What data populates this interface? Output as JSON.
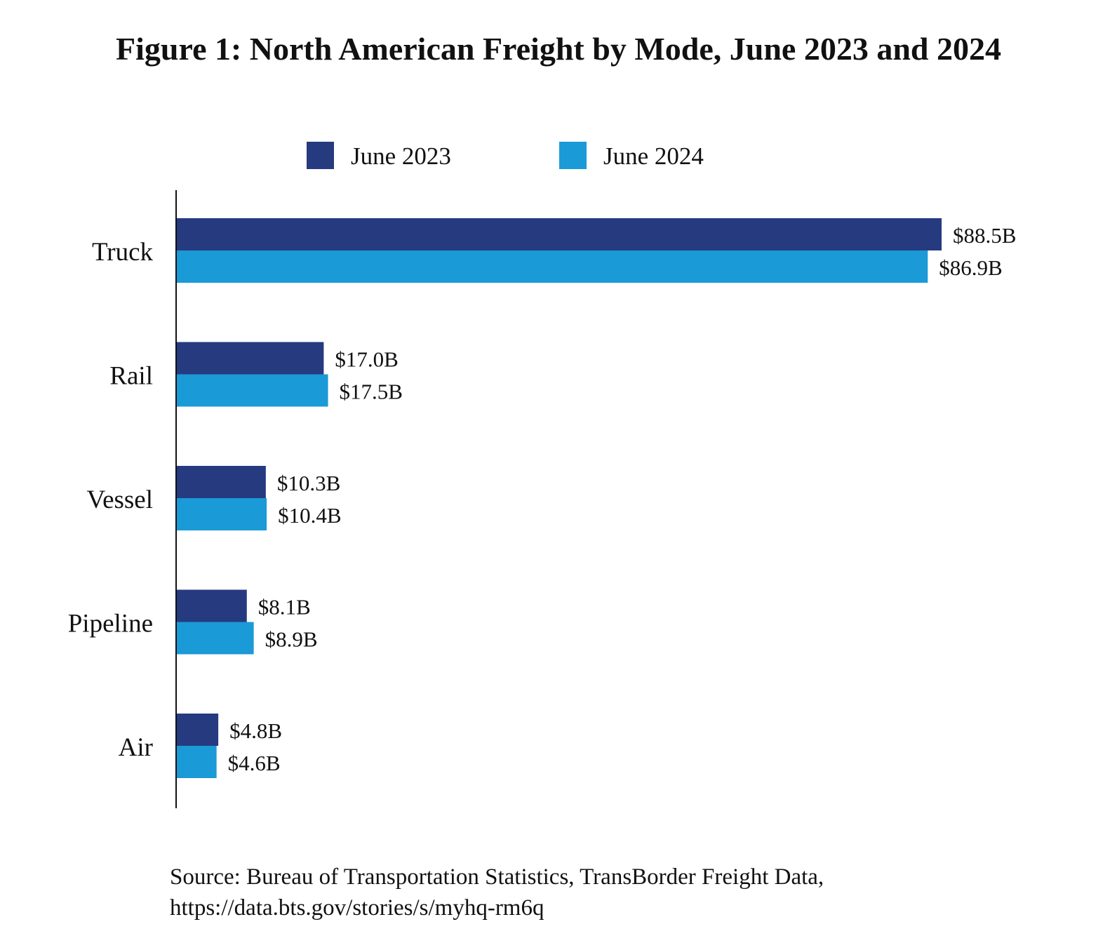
{
  "chart_data": {
    "type": "bar",
    "orientation": "horizontal",
    "title": "Figure 1: North American Freight by Mode, June 2023 and 2024",
    "categories": [
      "Truck",
      "Rail",
      "Vessel",
      "Pipeline",
      "Air"
    ],
    "series": [
      {
        "name": "June 2023",
        "color": "#263a80",
        "values": [
          88.5,
          17.0,
          10.3,
          8.1,
          4.8
        ],
        "labels": [
          "$88.5B",
          "$17.0B",
          "$10.3B",
          "$8.1B",
          "$4.8B"
        ]
      },
      {
        "name": "June 2024",
        "color": "#1a9ad6",
        "values": [
          86.9,
          17.5,
          10.4,
          8.9,
          4.6
        ],
        "labels": [
          "$86.9B",
          "$17.5B",
          "$10.4B",
          "$8.9B",
          "$4.6B"
        ]
      }
    ],
    "xlabel": "",
    "ylabel": "",
    "unit": "billion USD",
    "xlim": [
      0,
      88.5
    ],
    "grid": false,
    "legend": "top-center"
  },
  "source": {
    "line1": "Source: Bureau of Transportation Statistics, TransBorder Freight Data,",
    "line2": "https://data.bts.gov/stories/s/myhq-rm6q"
  }
}
